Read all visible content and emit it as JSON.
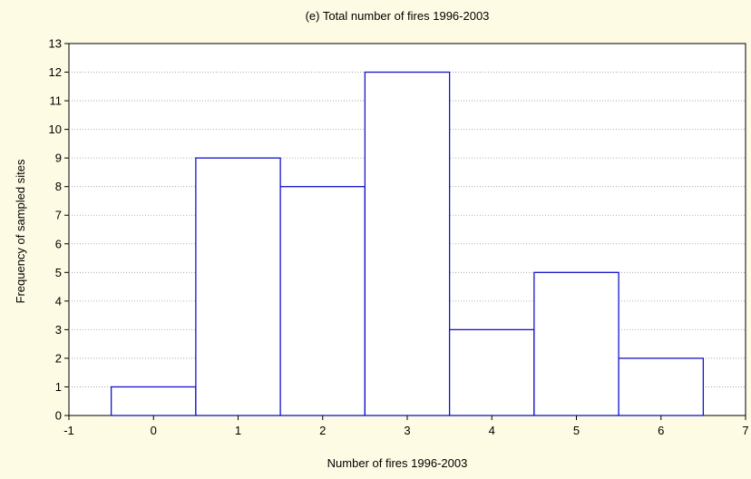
{
  "chart_data": {
    "type": "bar",
    "title": "(e) Total number of fires 1996-2003",
    "xlabel": "Number of fires 1996-2003",
    "ylabel": "Frequency of sampled sites",
    "categories": [
      0,
      1,
      2,
      3,
      4,
      5,
      6
    ],
    "values": [
      1,
      9,
      8,
      12,
      3,
      5,
      2
    ],
    "bin_width": 1,
    "xlim": [
      -1,
      7
    ],
    "ylim": [
      0,
      13
    ],
    "x_ticks": [
      "-1",
      "0",
      "1",
      "2",
      "3",
      "4",
      "5",
      "6",
      "7"
    ],
    "y_ticks": [
      "0",
      "1",
      "2",
      "3",
      "4",
      "5",
      "6",
      "7",
      "8",
      "9",
      "10",
      "11",
      "12",
      "13"
    ],
    "grid": "horizontal dotted",
    "colors": {
      "background": "#fdfbe3",
      "plot_background": "#ffffff",
      "bar_fill": "#ffffff",
      "bar_stroke": "#1414c8",
      "grid": "#9a9a9a"
    }
  }
}
